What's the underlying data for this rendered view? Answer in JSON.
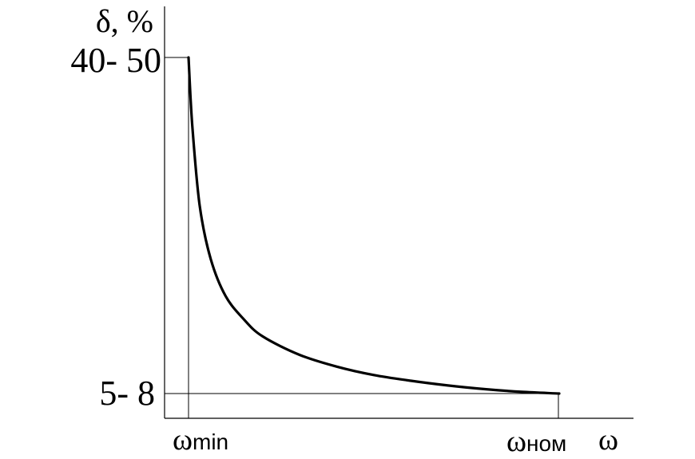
{
  "chart_data": {
    "type": "line",
    "title": "",
    "ylabel": "δ, %",
    "xlabel": "ω",
    "y_tick_labels": {
      "top": "40- 50",
      "bottom": "5- 8"
    },
    "x_tick_labels": {
      "min": {
        "symbol": "ω",
        "subscript": "min"
      },
      "nom": {
        "symbol": "ω",
        "subscript": "ном"
      }
    },
    "grid": false,
    "legend": "none",
    "series": [
      {
        "curve": "hyperbolic decay from upper level at ωmin to lower level at ωном",
        "x": [
          0,
          0.01,
          0.03,
          0.06,
          0.1,
          0.15,
          0.2,
          0.3,
          0.4,
          0.5,
          0.6,
          0.7,
          0.8,
          0.9,
          1.0
        ],
        "y": [
          1.0,
          0.8,
          0.56,
          0.4,
          0.29,
          0.22,
          0.17,
          0.115,
          0.08,
          0.055,
          0.038,
          0.024,
          0.013,
          0.005,
          0.0
        ]
      }
    ],
    "colors": {
      "curve": "#000000",
      "axes": "#000000"
    }
  }
}
